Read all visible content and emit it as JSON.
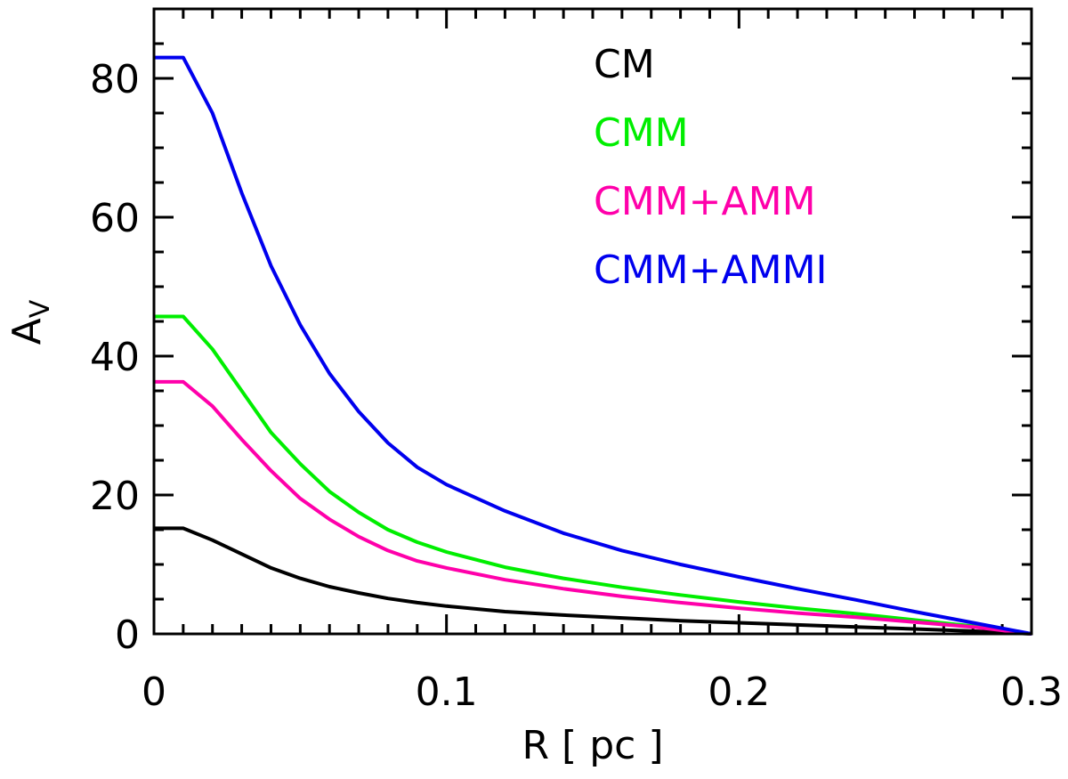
{
  "chart_data": {
    "type": "line",
    "title": "",
    "xlabel": "R [ pc ]",
    "ylabel": "A",
    "ylabel_subscript": "V",
    "xlim": [
      0,
      0.3
    ],
    "ylim": [
      0,
      90
    ],
    "x_ticks": [
      0,
      0.1,
      0.2,
      0.3
    ],
    "x_tick_labels": [
      "0",
      "0.1",
      "0.2",
      "0.3"
    ],
    "y_ticks": [
      0,
      20,
      40,
      60,
      80
    ],
    "y_tick_labels": [
      "0",
      "20",
      "40",
      "60",
      "80"
    ],
    "legend_position": "top-right",
    "series": [
      {
        "name": "CM",
        "color": "#000000",
        "x": [
          0,
          0.01,
          0.02,
          0.03,
          0.04,
          0.05,
          0.06,
          0.07,
          0.08,
          0.09,
          0.1,
          0.12,
          0.14,
          0.16,
          0.18,
          0.2,
          0.22,
          0.24,
          0.26,
          0.28,
          0.3
        ],
        "y": [
          15.2,
          15.2,
          13.5,
          11.5,
          9.5,
          8.0,
          6.8,
          5.9,
          5.1,
          4.5,
          4.0,
          3.2,
          2.7,
          2.3,
          1.9,
          1.6,
          1.3,
          1.0,
          0.7,
          0.4,
          0.0
        ]
      },
      {
        "name": "CMM",
        "color": "#00ee00",
        "x": [
          0,
          0.01,
          0.02,
          0.03,
          0.04,
          0.05,
          0.06,
          0.07,
          0.08,
          0.09,
          0.1,
          0.12,
          0.14,
          0.16,
          0.18,
          0.2,
          0.22,
          0.24,
          0.26,
          0.28,
          0.3
        ],
        "y": [
          45.7,
          45.7,
          41.0,
          35.0,
          29.0,
          24.5,
          20.5,
          17.5,
          15.0,
          13.2,
          11.8,
          9.6,
          8.0,
          6.7,
          5.6,
          4.6,
          3.7,
          2.9,
          2.0,
          1.1,
          0.0
        ]
      },
      {
        "name": "CMM+AMM",
        "color": "#ff00aa",
        "x": [
          0,
          0.01,
          0.02,
          0.03,
          0.04,
          0.05,
          0.06,
          0.07,
          0.08,
          0.09,
          0.1,
          0.12,
          0.14,
          0.16,
          0.18,
          0.2,
          0.22,
          0.24,
          0.26,
          0.28,
          0.3
        ],
        "y": [
          36.3,
          36.3,
          32.8,
          28.0,
          23.5,
          19.5,
          16.5,
          14.0,
          12.0,
          10.5,
          9.5,
          7.8,
          6.5,
          5.4,
          4.5,
          3.7,
          3.0,
          2.4,
          1.7,
          1.0,
          0.0
        ]
      },
      {
        "name": "CMM+AMMI",
        "color": "#0000ee",
        "x": [
          0,
          0.01,
          0.02,
          0.03,
          0.04,
          0.05,
          0.06,
          0.07,
          0.08,
          0.09,
          0.1,
          0.12,
          0.14,
          0.16,
          0.18,
          0.2,
          0.22,
          0.24,
          0.26,
          0.28,
          0.3
        ],
        "y": [
          83.0,
          83.0,
          75.0,
          63.5,
          53.0,
          44.5,
          37.5,
          32.0,
          27.5,
          24.0,
          21.5,
          17.7,
          14.5,
          12.0,
          10.0,
          8.2,
          6.5,
          4.9,
          3.2,
          1.6,
          0.0
        ]
      }
    ]
  }
}
